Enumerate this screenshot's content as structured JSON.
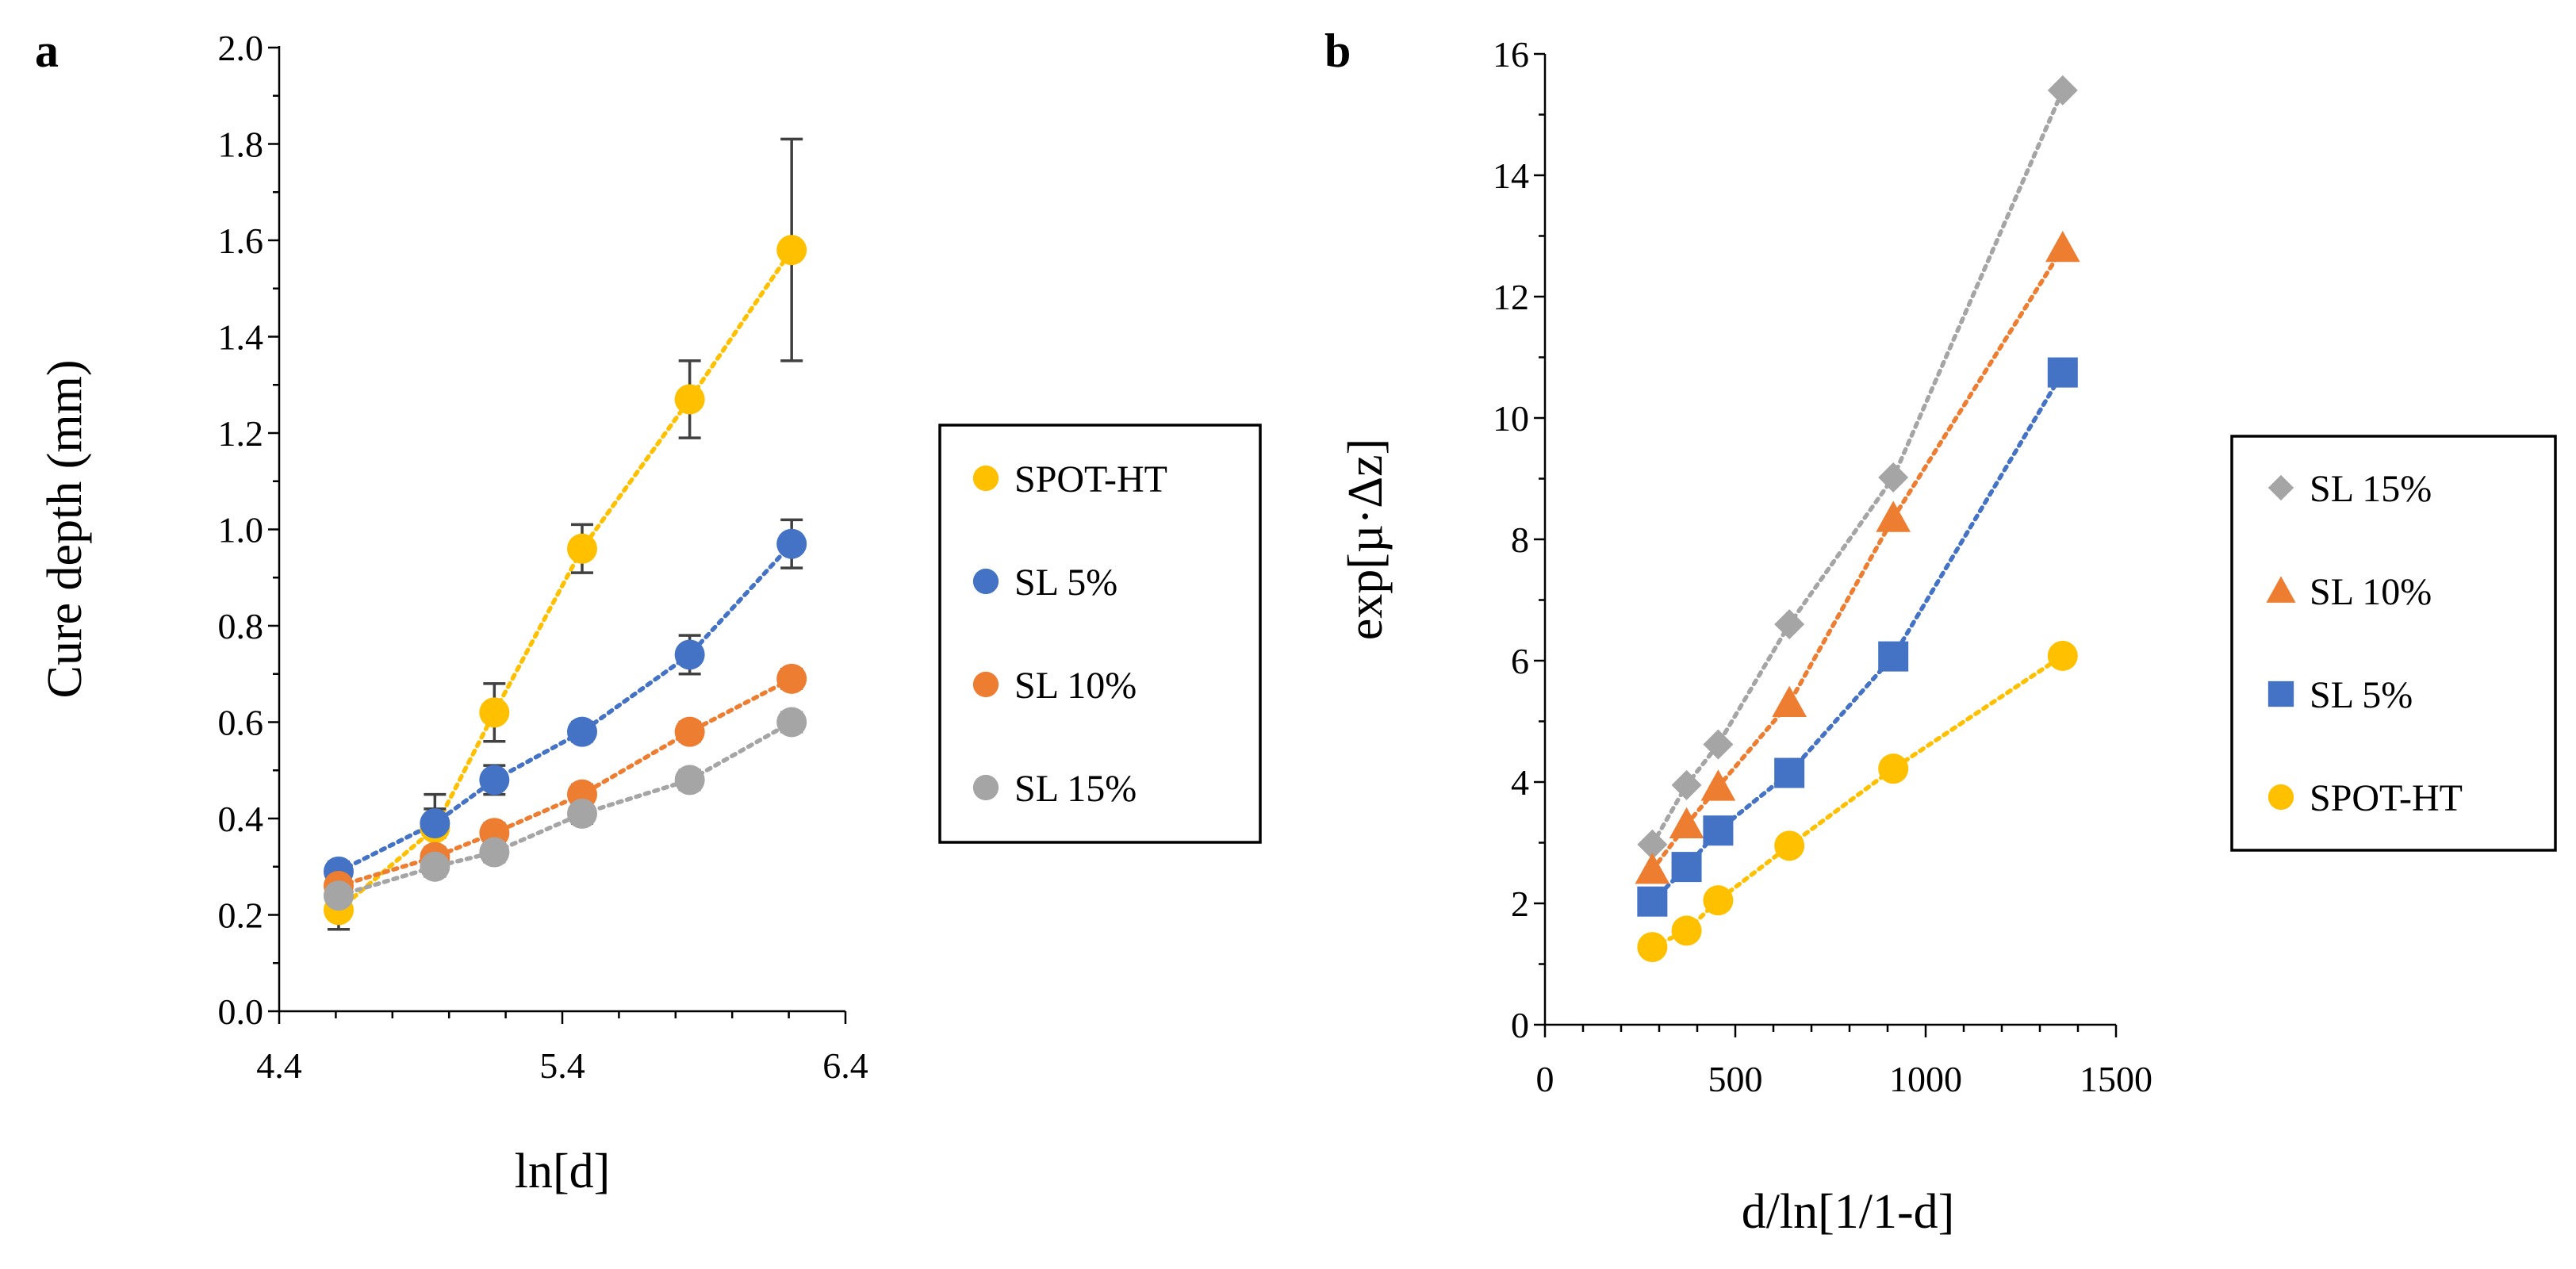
{
  "chart_data": [
    {
      "panel": "a",
      "type": "scatter",
      "xlabel": "ln[d]",
      "ylabel": "Cure depth (mm)",
      "xlim": [
        4.4,
        6.4
      ],
      "ylim": [
        0,
        2.0
      ],
      "xticks": [
        4.4,
        5.4,
        6.4
      ],
      "yticks": [
        0,
        0.2,
        0.4,
        0.6,
        0.8,
        1.0,
        1.2,
        1.4,
        1.6,
        1.8,
        2.0
      ],
      "xtick_labels": [
        "4.4",
        "5.4",
        "6.4"
      ],
      "ytick_labels": [
        "0.0",
        "0.2",
        "0.4",
        "0.6",
        "0.8",
        "1.0",
        "1.2",
        "1.4",
        "1.6",
        "1.8",
        "2.0"
      ],
      "legend_position": "right",
      "series": [
        {
          "name": "SPOT-HT",
          "color": "#FFC000",
          "marker": "circle",
          "x": [
            4.61,
            4.95,
            5.16,
            5.47,
            5.85,
            6.21
          ],
          "y": [
            0.21,
            0.38,
            0.62,
            0.96,
            1.27,
            1.58
          ],
          "err": [
            0.04,
            0.07,
            0.06,
            0.05,
            0.08,
            0.23
          ]
        },
        {
          "name": "SL 5%",
          "color": "#4472C4",
          "marker": "circle",
          "x": [
            4.61,
            4.95,
            5.16,
            5.47,
            5.85,
            6.21
          ],
          "y": [
            0.29,
            0.39,
            0.48,
            0.58,
            0.74,
            0.97
          ],
          "err": [
            0.02,
            0.03,
            0.03,
            0.02,
            0.04,
            0.05
          ]
        },
        {
          "name": "SL 10%",
          "color": "#ED7D31",
          "marker": "circle",
          "x": [
            4.61,
            4.95,
            5.16,
            5.47,
            5.85,
            6.21
          ],
          "y": [
            0.26,
            0.32,
            0.37,
            0.45,
            0.58,
            0.69
          ],
          "err": [
            0.02,
            0.02,
            0.02,
            0.02,
            0.02,
            0.02
          ]
        },
        {
          "name": "SL 15%",
          "color": "#A5A5A5",
          "marker": "circle",
          "x": [
            4.61,
            4.95,
            5.16,
            5.47,
            5.85,
            6.21
          ],
          "y": [
            0.24,
            0.3,
            0.33,
            0.41,
            0.48,
            0.6
          ],
          "err": [
            0.02,
            0.02,
            0.02,
            0.02,
            0.02,
            0.02
          ]
        }
      ],
      "legend_order": [
        "SPOT-HT",
        "SL 5%",
        "SL 10%",
        "SL 15%"
      ]
    },
    {
      "panel": "b",
      "type": "scatter",
      "xlabel": "d/ln[1/1-d]",
      "ylabel": "exp[µ·Δz]",
      "xlim": [
        0,
        1500
      ],
      "ylim": [
        0,
        16
      ],
      "xticks": [
        0,
        500,
        1000,
        1500
      ],
      "yticks": [
        0,
        2,
        4,
        6,
        8,
        10,
        12,
        14,
        16
      ],
      "xtick_labels": [
        "0",
        "500",
        "1000",
        "1500"
      ],
      "ytick_labels": [
        "0",
        "2",
        "4",
        "6",
        "8",
        "10",
        "12",
        "14",
        "16"
      ],
      "legend_position": "right",
      "series": [
        {
          "name": "SL 15%",
          "color": "#A5A5A5",
          "marker": "diamond",
          "x": [
            282,
            372,
            455,
            642,
            915,
            1360
          ],
          "y": [
            2.97,
            3.95,
            4.62,
            6.6,
            9.02,
            15.4
          ]
        },
        {
          "name": "SL 10%",
          "color": "#ED7D31",
          "marker": "triangle",
          "x": [
            282,
            372,
            455,
            642,
            915,
            1360
          ],
          "y": [
            2.55,
            3.3,
            3.92,
            5.3,
            8.35,
            12.8
          ]
        },
        {
          "name": "SL 5%",
          "color": "#4472C4",
          "marker": "square",
          "x": [
            282,
            372,
            455,
            642,
            915,
            1360
          ],
          "y": [
            2.03,
            2.6,
            3.2,
            4.15,
            6.07,
            10.75
          ]
        },
        {
          "name": "SPOT-HT",
          "color": "#FFC000",
          "marker": "circle",
          "x": [
            282,
            372,
            455,
            642,
            915,
            1360
          ],
          "y": [
            1.28,
            1.55,
            2.05,
            2.95,
            4.22,
            6.08
          ]
        }
      ],
      "legend_order": [
        "SL 15%",
        "SL 10%",
        "SL 5%",
        "SPOT-HT"
      ]
    }
  ]
}
